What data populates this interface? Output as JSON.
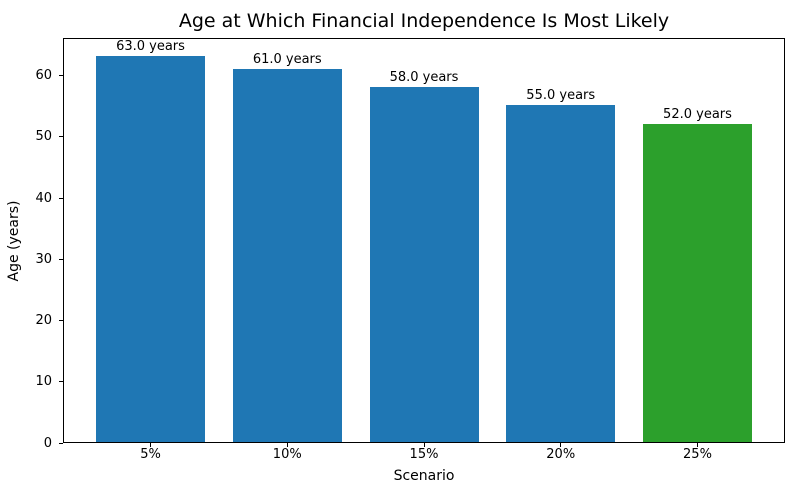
{
  "title": "Age at Which Financial Independence Is Most Likely",
  "chart_data": {
    "type": "bar",
    "title": "Age at Which Financial Independence Is Most Likely",
    "xlabel": "Scenario",
    "ylabel": "Age (years)",
    "categories": [
      "5%",
      "10%",
      "15%",
      "20%",
      "25%"
    ],
    "values": [
      63.0,
      61.0,
      58.0,
      55.0,
      52.0
    ],
    "bar_labels": [
      "63.0 years",
      "61.0 years",
      "58.0 years",
      "55.0 years",
      "52.0 years"
    ],
    "bar_colors": [
      "#1f77b4",
      "#1f77b4",
      "#1f77b4",
      "#1f77b4",
      "#2ca02c"
    ],
    "yticks": [
      0,
      10,
      20,
      30,
      40,
      50,
      60
    ],
    "ylim": [
      0,
      66.15
    ],
    "grid": false,
    "legend_position": "none",
    "highlight_color": "#2ca02c",
    "default_bar_color": "#1f77b4"
  }
}
